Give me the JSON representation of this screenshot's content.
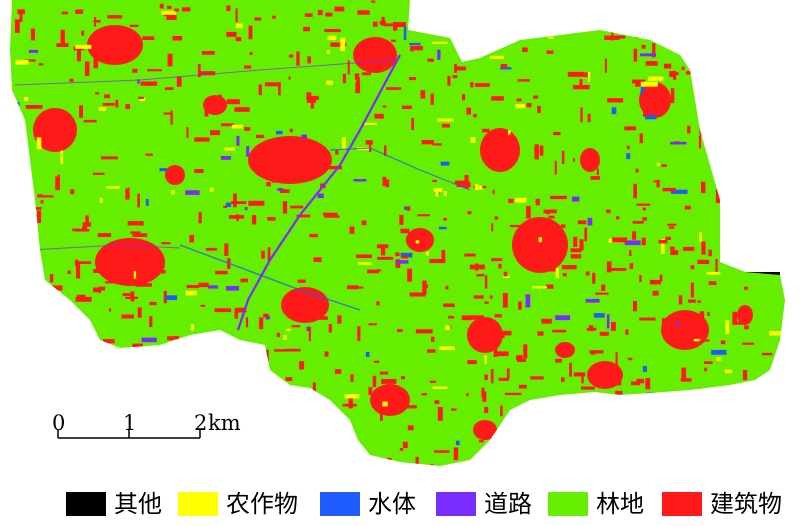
{
  "colors": {
    "other": "#000000",
    "crop": "#ffff00",
    "water": "#1f5cff",
    "road": "#7a2cff",
    "forest": "#66ee00",
    "building": "#ff1a1a"
  },
  "scale_bar": {
    "ticks": [
      "0",
      "1",
      "2"
    ],
    "unit": "km"
  },
  "legend": [
    {
      "label": "其他",
      "class": "other"
    },
    {
      "label": "农作物",
      "class": "crop"
    },
    {
      "label": "水体",
      "class": "water"
    },
    {
      "label": "道路",
      "class": "road"
    },
    {
      "label": "林地",
      "class": "forest"
    },
    {
      "label": "建筑物",
      "class": "building"
    }
  ]
}
